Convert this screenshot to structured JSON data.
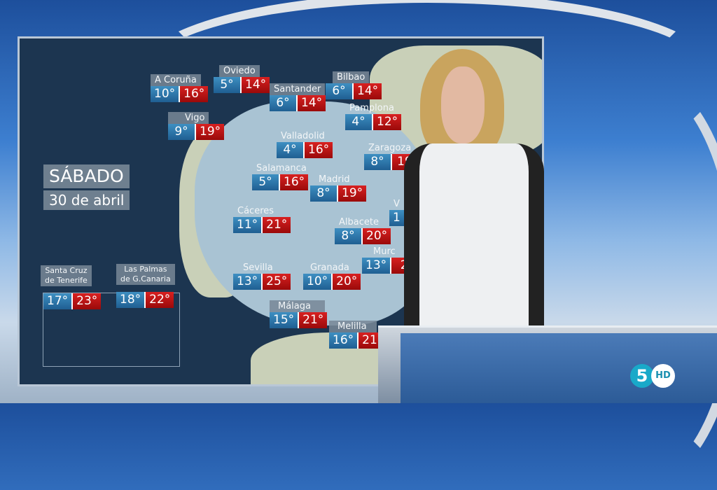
{
  "date": {
    "weekday": "SÁBADO",
    "date": "30 de abril"
  },
  "cities": [
    {
      "name": "A Coruña",
      "min": "10°",
      "max": "16°"
    },
    {
      "name": "Oviedo",
      "min": "5°",
      "max": "14°"
    },
    {
      "name": "Santander",
      "min": "6°",
      "max": "14°"
    },
    {
      "name": "Bilbao",
      "min": "6°",
      "max": "14°"
    },
    {
      "name": "Pamplona",
      "min": "4°",
      "max": "12°"
    },
    {
      "name": "Vigo",
      "min": "9°",
      "max": "19°"
    },
    {
      "name": "Valladolid",
      "min": "4°",
      "max": "16°"
    },
    {
      "name": "Zaragoza",
      "min": "8°",
      "max": "19"
    },
    {
      "name": "Salamanca",
      "min": "5°",
      "max": "16°"
    },
    {
      "name": "Madrid",
      "min": "8°",
      "max": "19°"
    },
    {
      "name": "Cáceres",
      "min": "11°",
      "max": "21°"
    },
    {
      "name": "Albacete",
      "min": "8°",
      "max": "20°"
    },
    {
      "name": "Murc",
      "min": "13°",
      "max": "2"
    },
    {
      "name": "Sevilla",
      "min": "13°",
      "max": "25°"
    },
    {
      "name": "Granada",
      "min": "10°",
      "max": "20°"
    },
    {
      "name": "Málaga",
      "min": "15°",
      "max": "21°"
    },
    {
      "name": "Melilla",
      "min": "16°",
      "max": "21°"
    },
    {
      "name": "V",
      "min": "1",
      "max": ""
    }
  ],
  "canarias": [
    {
      "name_line1": "Santa Cruz",
      "name_line2": "de Tenerife",
      "min": "17°",
      "max": "23°"
    },
    {
      "name_line1": "Las Palmas",
      "name_line2": "de G.Canaria",
      "min": "18°",
      "max": "22°"
    }
  ],
  "colors": {
    "min": "#2f7db3",
    "max": "#c01414",
    "sea": "#1c3550"
  },
  "logo": {
    "channel": "5",
    "hd": "HD"
  }
}
